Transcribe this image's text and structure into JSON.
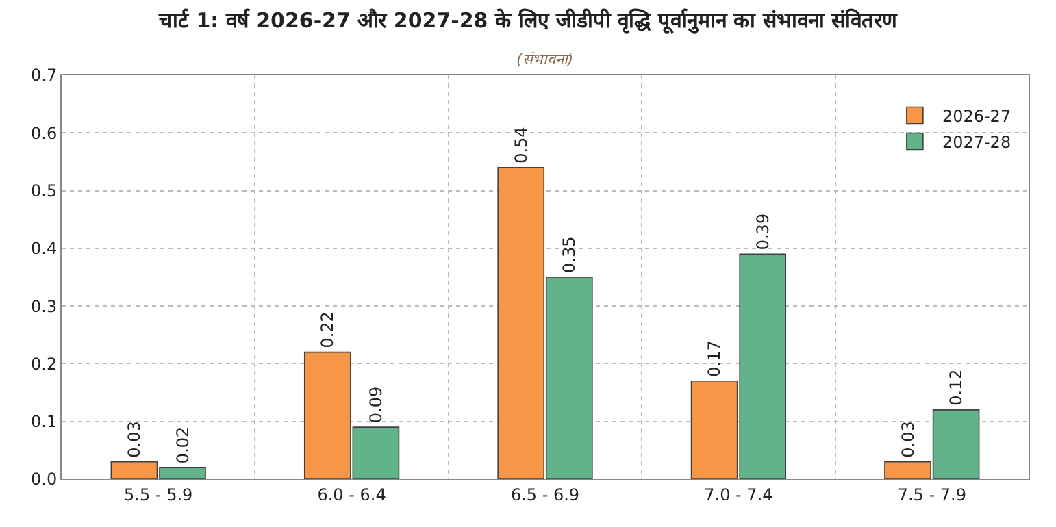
{
  "chart_data": {
    "type": "bar",
    "title": "चार्ट 1: वर्ष 2026-27 और 2027-28 के लिए जीडीपी वृद्धि पूर्वानुमान का संभावना संवितरण",
    "subtitle": "(संभावना)",
    "categories": [
      "5.5 - 5.9",
      "6.0 - 6.4",
      "6.5 - 6.9",
      "7.0 - 7.4",
      "7.5 - 7.9"
    ],
    "series": [
      {
        "name": "2026-27",
        "color": "#f79646",
        "values": [
          0.03,
          0.22,
          0.54,
          0.17,
          0.03
        ]
      },
      {
        "name": "2027-28",
        "color": "#62b389",
        "values": [
          0.02,
          0.09,
          0.35,
          0.39,
          0.12
        ]
      }
    ],
    "ylim": [
      0,
      0.7
    ],
    "yticks": [
      {
        "value": 0,
        "label": "0.0"
      },
      0.1,
      0.2,
      0.3,
      0.4,
      0.5,
      0.6,
      0.7
    ],
    "grid": true,
    "legend": "top right",
    "data_labels": true
  }
}
